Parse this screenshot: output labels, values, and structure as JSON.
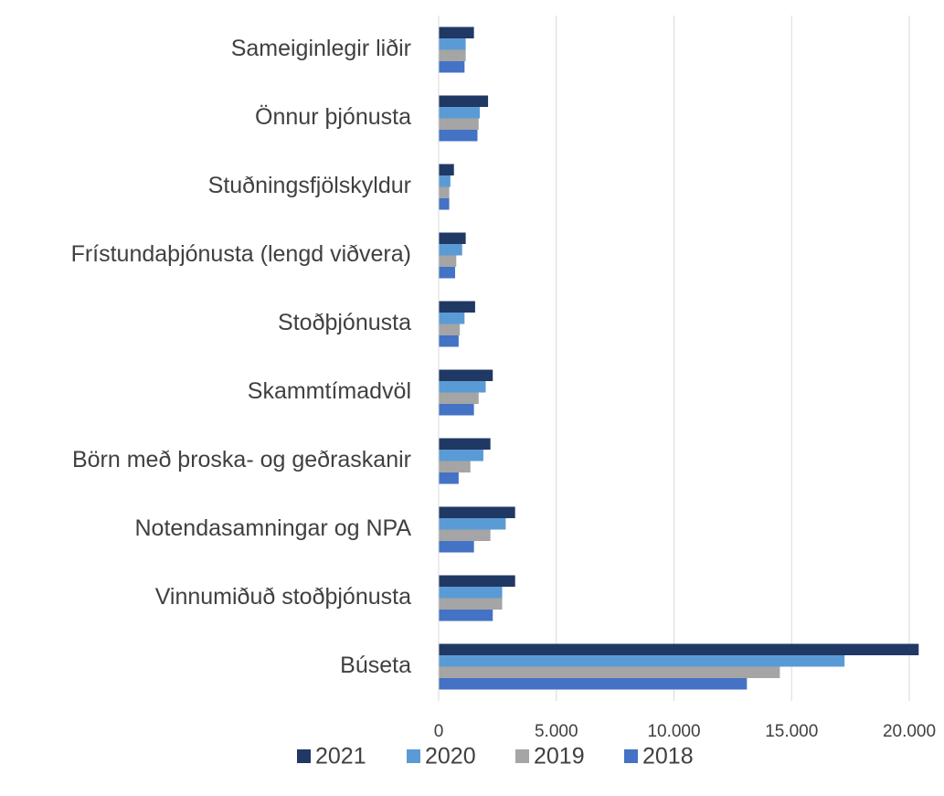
{
  "chart_data": {
    "type": "barh",
    "categories": [
      "Sameiginlegir liðir",
      "Önnur þjónusta",
      "Stuðningsfjölskyldur",
      "Frístundaþjónusta (lengd viðvera)",
      "Stoðþjónusta",
      "Skammtímadvöl",
      "Börn með þroska- og geðraskanir",
      "Notendasamningar og NPA",
      "Vinnumiðuð stoðþjónusta",
      "Búseta"
    ],
    "series": [
      {
        "name": "2021",
        "color": "#203864",
        "values": [
          1500,
          2100,
          650,
          1150,
          1550,
          2300,
          2200,
          3250,
          3250,
          20400
        ]
      },
      {
        "name": "2020",
        "color": "#5b9bd5",
        "values": [
          1150,
          1750,
          500,
          1000,
          1100,
          2000,
          1900,
          2850,
          2700,
          17250
        ]
      },
      {
        "name": "2019",
        "color": "#a5a5a5",
        "values": [
          1150,
          1700,
          450,
          750,
          900,
          1700,
          1350,
          2200,
          2700,
          14500
        ]
      },
      {
        "name": "2018",
        "color": "#4472c4",
        "values": [
          1100,
          1650,
          450,
          700,
          850,
          1500,
          850,
          1500,
          2300,
          13100
        ]
      }
    ],
    "xlim": [
      0,
      20000
    ],
    "xticks": [
      0,
      {
        "value": 5000,
        "label": "5.000"
      },
      {
        "value": 10000,
        "label": "10.000"
      },
      {
        "value": 15000,
        "label": "15.000"
      },
      {
        "value": 20000,
        "label": "20.000"
      }
    ],
    "grid": true,
    "legend": "bottom"
  }
}
